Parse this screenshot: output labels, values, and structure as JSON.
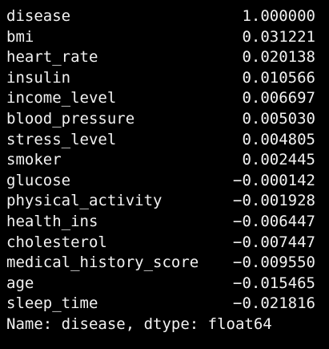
{
  "series_output": {
    "rows": [
      {
        "name": "disease",
        "value": "1.000000"
      },
      {
        "name": "bmi",
        "value": "0.031221"
      },
      {
        "name": "heart_rate",
        "value": "0.020138"
      },
      {
        "name": "insulin",
        "value": "0.010566"
      },
      {
        "name": "income_level",
        "value": "0.006697"
      },
      {
        "name": "blood_pressure",
        "value": "0.005030"
      },
      {
        "name": "stress_level",
        "value": "0.004805"
      },
      {
        "name": "smoker",
        "value": "0.002445"
      },
      {
        "name": "glucose",
        "value": "−0.000142"
      },
      {
        "name": "physical_activity",
        "value": "−0.001928"
      },
      {
        "name": "health_ins",
        "value": "−0.006447"
      },
      {
        "name": "cholesterol",
        "value": "−0.007447"
      },
      {
        "name": "medical_history_score",
        "value": "−0.009550"
      },
      {
        "name": "age",
        "value": "−0.015465"
      },
      {
        "name": "sleep_time",
        "value": "−0.021816"
      }
    ],
    "footer": "Name: disease, dtype: float64"
  },
  "colors": {
    "background": "#000000",
    "text": "#f2f2f2"
  }
}
